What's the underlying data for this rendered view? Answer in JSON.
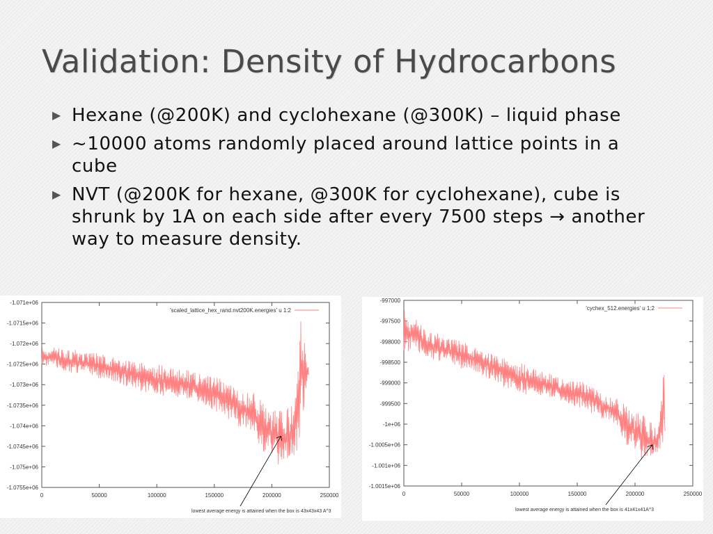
{
  "slide": {
    "title": "Validation: Density of Hydrocarbons",
    "bullets": [
      "Hexane (@200K) and cyclohexane (@300K) – liquid phase",
      "~10000 atoms randomly placed around lattice points in a cube",
      "NVT (@200K for hexane, @300K for cyclohexane), cube is shrunk by 1A on each side after every 7500 steps → another way to measure density."
    ],
    "bullet_icon": "triangle-right-icon"
  },
  "chart_data": [
    {
      "type": "line",
      "legend": "'scaled_lattice_hex_rand.nvt200K.energies' u 1:2",
      "legend_position": "top-right",
      "color": "#ff8080",
      "xlim": [
        0,
        250000
      ],
      "ylim": [
        -1075500,
        -1071000
      ],
      "xticks": [
        "0",
        "50000",
        "100000",
        "150000",
        "200000",
        "250000"
      ],
      "yticks": [
        "-1.071e+06",
        "-1.0715e+06",
        "-1.072e+06",
        "-1.0725e+06",
        "-1.073e+06",
        "-1.0735e+06",
        "-1.074e+06",
        "-1.0745e+06",
        "-1.075e+06",
        "-1.0755e+06"
      ],
      "grid": false,
      "envelope": {
        "x": [
          0,
          20000,
          40000,
          60000,
          80000,
          100000,
          120000,
          140000,
          160000,
          180000,
          200000,
          210000,
          220000,
          225000,
          232000
        ],
        "low": [
          -1072500,
          -1072700,
          -1072800,
          -1072900,
          -1073100,
          -1073300,
          -1073300,
          -1073500,
          -1073800,
          -1074200,
          -1074900,
          -1075100,
          -1074800,
          -1074200,
          -1072800
        ],
        "high": [
          -1072100,
          -1072100,
          -1072200,
          -1072300,
          -1072400,
          -1072500,
          -1072600,
          -1072700,
          -1072900,
          -1073100,
          -1073500,
          -1073600,
          -1073500,
          -1071300,
          -1072600
        ]
      },
      "annotation": {
        "text": "lowest average energy is attained when the box is 43x43x43 A^3",
        "points_to": [
          208000,
          -1074250
        ]
      }
    },
    {
      "type": "line",
      "legend": "'cychex_512.energies' u 1:2",
      "legend_position": "top-right",
      "color": "#ff8080",
      "xlim": [
        0,
        250000
      ],
      "ylim": [
        -1001500,
        -997000
      ],
      "xticks": [
        "0",
        "50000",
        "100000",
        "150000",
        "200000",
        "250000"
      ],
      "yticks": [
        "-997000",
        "-997500",
        "-998000",
        "-998500",
        "-999000",
        "-999500",
        "-1e+06",
        "-1.0005e+06",
        "-1.001e+06",
        "-1.0015e+06"
      ],
      "grid": false,
      "envelope": {
        "x": [
          0,
          20000,
          40000,
          60000,
          80000,
          100000,
          120000,
          140000,
          160000,
          180000,
          200000,
          210000,
          220000,
          225000,
          226000
        ],
        "low": [
          -998200,
          -998400,
          -998600,
          -998700,
          -999000,
          -999300,
          -999300,
          -999500,
          -999700,
          -1000000,
          -1000800,
          -1001000,
          -1000700,
          -1000400,
          -1000300
        ],
        "high": [
          -997200,
          -997700,
          -997900,
          -998100,
          -998300,
          -998500,
          -998700,
          -998900,
          -999000,
          -999300,
          -999600,
          -999800,
          -1000200,
          -998400,
          -1000100
        ]
      },
      "annotation": {
        "text": "lowest average energy is attained when the box is 41x41x41A^3",
        "points_to": [
          215000,
          -1000500
        ]
      }
    }
  ]
}
